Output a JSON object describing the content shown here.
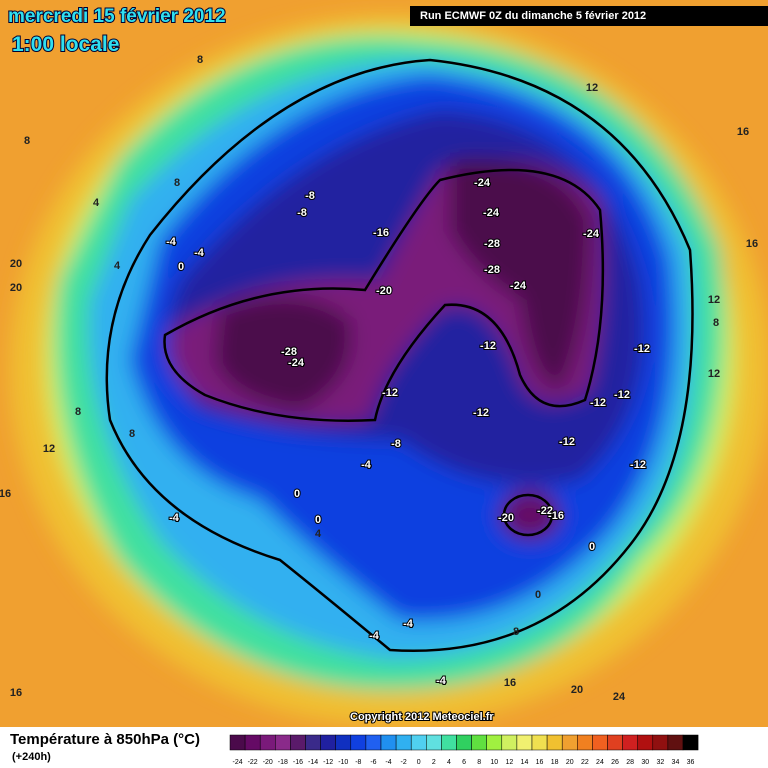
{
  "header": {
    "title": "mercredi 15 février 2012",
    "subtitle": "1:00 locale",
    "run": "Run ECMWF 0Z du dimanche 5 février 2012"
  },
  "map": {
    "labels": [
      "-24",
      "-24",
      "-16",
      "-24",
      "-28",
      "-28",
      "-24",
      "-20",
      "-28",
      "-24",
      "-12",
      "-12",
      "-12",
      "-12",
      "-12",
      "-12",
      "-8",
      "-12",
      "-12",
      "-4",
      "0",
      "-4",
      "0",
      "-20",
      "-22",
      "-16",
      "0",
      "-8",
      "-8",
      "8",
      "12",
      "16",
      "16",
      "12",
      "8",
      "12",
      "20",
      "20",
      "16",
      "16",
      "20",
      "24",
      "16",
      "8",
      "8",
      "4",
      "-4",
      "-4",
      "0",
      "4",
      "8",
      "12",
      "8",
      "-4",
      "-4",
      "-4",
      "0",
      "8",
      "4"
    ]
  },
  "copyright": "Copyright 2012 Meteociel.fr",
  "legend": {
    "title": "Température à 850hPa (°C)",
    "subtitle": "(+240h)",
    "ticks": [
      -24,
      -22,
      -20,
      -18,
      -16,
      -14,
      -12,
      -10,
      -8,
      -6,
      -4,
      -2,
      0,
      2,
      4,
      6,
      8,
      10,
      12,
      14,
      16,
      18,
      20,
      22,
      24,
      26,
      28,
      30,
      32,
      34,
      36
    ],
    "colors": [
      "#4b0a4b",
      "#650a65",
      "#7a1a7a",
      "#8a2a8a",
      "#5a1a6a",
      "#3a2a8a",
      "#2020a0",
      "#1030c0",
      "#1040e0",
      "#2060f0",
      "#2090f0",
      "#30b0f0",
      "#50d0f0",
      "#60e0e0",
      "#40e0a0",
      "#30d060",
      "#60e040",
      "#a0f040",
      "#d0f060",
      "#f0f070",
      "#f0e050",
      "#f0c030",
      "#f0a030",
      "#f08020",
      "#f06020",
      "#e04020",
      "#d02020",
      "#b01010",
      "#901010",
      "#601010",
      "#000000"
    ]
  }
}
